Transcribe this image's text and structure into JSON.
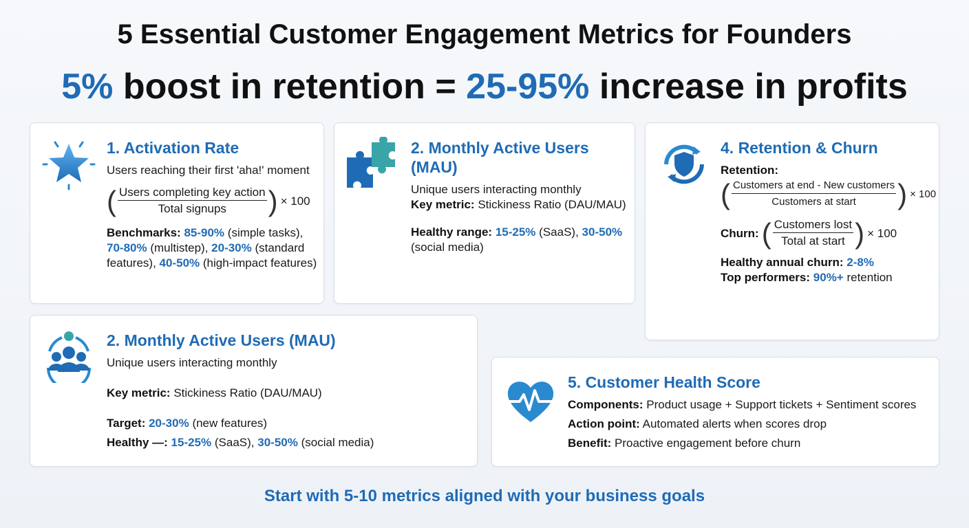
{
  "header": {
    "title": "5 Essential Customer Engagement Metrics for Founders",
    "subtitle": [
      "5%",
      "boost in retention =",
      "25-95%",
      "increase in profits"
    ]
  },
  "cards": [
    {
      "title": "1. Activation Rate",
      "description": "Users reaching their first 'aha!' moment",
      "formula": {
        "numerator": "Users completing key action",
        "denominator": "Total signups",
        "multiplier": "× 100"
      },
      "benchmarks": [
        "Benchmarks:",
        "85-90%",
        "(simple tasks),",
        "70-80%",
        "(multistep),",
        "20-30%",
        "(standard features),",
        "40-50%",
        "(high-impact features)"
      ]
    },
    {
      "title": "2. Monthly Active Users (MAU)",
      "description": "Unique users interacting monthly",
      "key_metric": [
        "Key metric:",
        "Stickiness Ratio (DAU/MAU)"
      ],
      "healthy_range": [
        "Healthy range:",
        "15-25%",
        "(SaaS),",
        "30-50%",
        "(social media)"
      ]
    },
    {
      "title": "4. Retention & Churn",
      "retention": {
        "label": "Retention:",
        "numerator": "Customers at end - New customers",
        "denominator": "Customers at start",
        "multiplier": "× 100"
      },
      "churn": {
        "label": "Churn:",
        "numerator": "Customers lost",
        "denominator": "Total at start",
        "multiplier": "× 100"
      },
      "healthy_churn": [
        "Healthy annual churn:",
        "2-8%"
      ],
      "top_performers": [
        "Top performers:",
        "90%+",
        "retention"
      ]
    },
    {
      "title": "2. Monthly Active Users (MAU)",
      "description": "Unique users interacting monthly",
      "key_metric": [
        "Key metric:",
        "Stickiness Ratio (DAU/MAU)"
      ],
      "target": [
        "Target:",
        "20-30%",
        "(new features)"
      ],
      "healthy": [
        "Healthy —:",
        "15-25%",
        "(SaaS),",
        "30-50%",
        "(social media)"
      ]
    },
    {
      "title": "5. Customer Health Score",
      "components": [
        "Components:",
        "Product usage + Support tickets + Sentiment scores"
      ],
      "action_point": [
        "Action point:",
        "Automated alerts when scores drop"
      ],
      "benefit": [
        "Benefit:",
        "Proactive engagement before churn"
      ]
    }
  ],
  "footer": "Start with 5-10 metrics aligned with your business goals"
}
